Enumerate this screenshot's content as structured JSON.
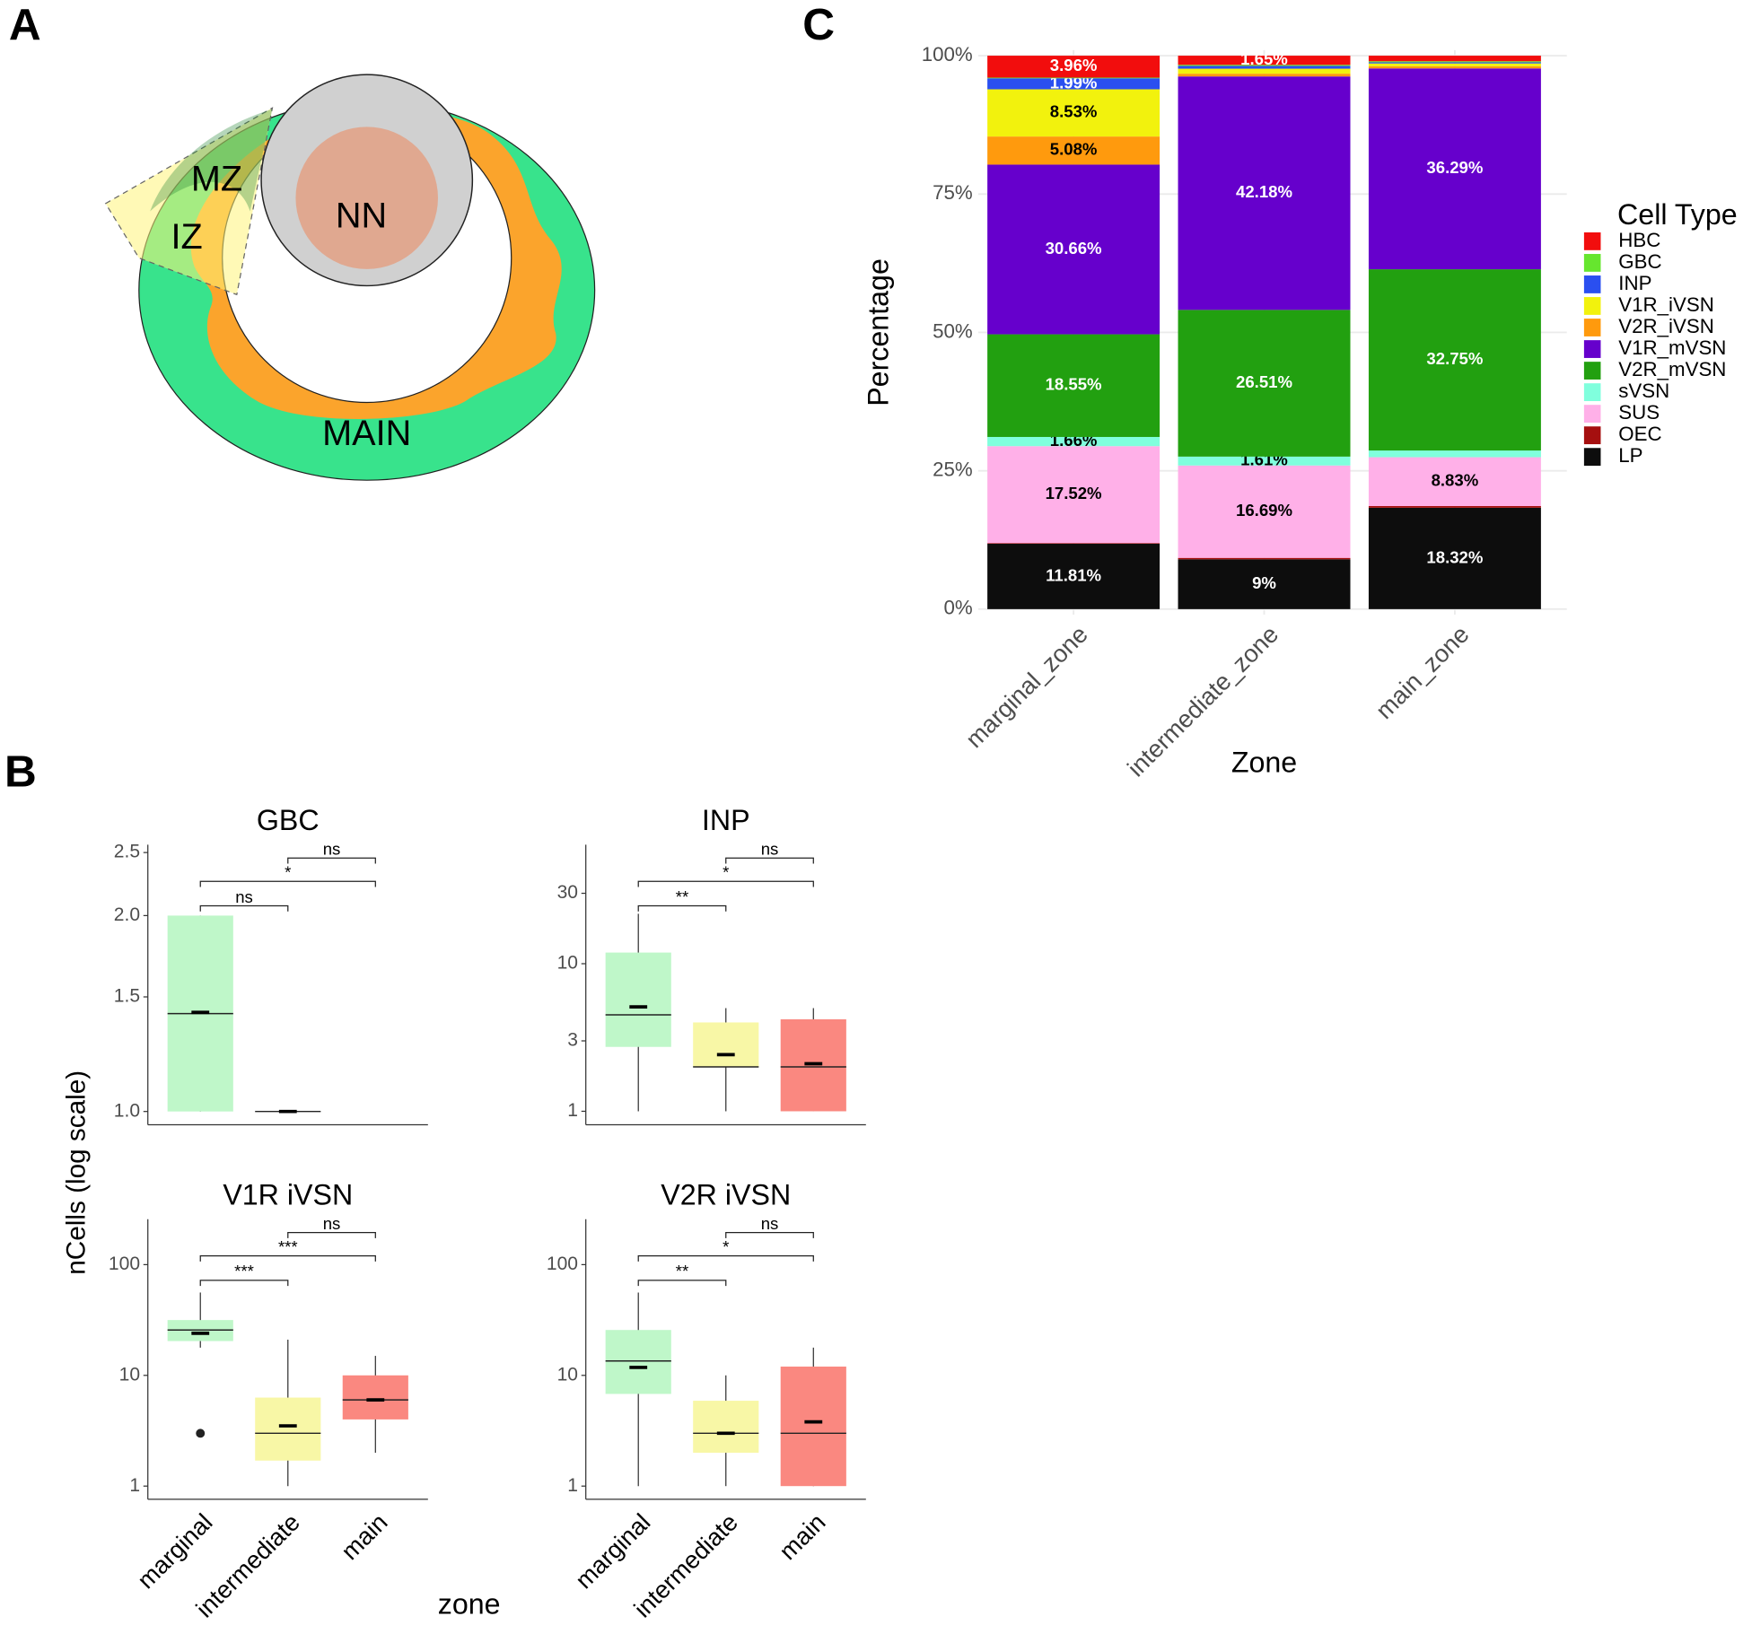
{
  "figure": {
    "panel_a": {
      "letter": "A",
      "labels": [
        "MZ",
        "IZ",
        "NN",
        "MAIN"
      ]
    },
    "panel_b": {
      "letter": "B",
      "y_label": "nCells (log scale)",
      "x_label": "zone"
    },
    "panel_c": {
      "letter": "C"
    }
  },
  "chart_data": [
    {
      "type": "box",
      "title": "GBC",
      "categories": [
        null,
        null,
        null
      ],
      "colors": [
        "#bff7c9",
        "#f8f7a6",
        "#fa8880"
      ],
      "log_scale": true,
      "ylim": [
        0.954,
        2.57
      ],
      "yticks": [
        {
          "value": 1,
          "label": "1.0"
        },
        1.5,
        {
          "value": 2,
          "label": "2.0"
        },
        2.5
      ],
      "boxes": [
        {
          "low": 1,
          "q1": 1,
          "median": 1.414,
          "q3": 2,
          "high": 2,
          "mean": 1.42
        },
        {
          "low": 1,
          "q1": 1,
          "median": 1,
          "q3": 1,
          "high": 1,
          "mean": 1
        },
        null
      ],
      "significance": [
        "ns",
        "*",
        "ns"
      ]
    },
    {
      "type": "box",
      "title": "INP",
      "categories": [
        null,
        null,
        null
      ],
      "colors": [
        "#bff7c9",
        "#f8f7a6",
        "#fa8880"
      ],
      "log_scale": true,
      "ylim": [
        0.81,
        64
      ],
      "yticks": [
        1,
        3,
        10,
        30
      ],
      "boxes": [
        {
          "low": 1,
          "q1": 2.73,
          "median": 4.5,
          "q3": 11.9,
          "high": 21.8,
          "mean": 5.1
        },
        {
          "low": 1,
          "q1": 2,
          "median": 2,
          "q3": 4,
          "high": 5,
          "mean": 2.42
        },
        {
          "low": 1,
          "q1": 1,
          "median": 2,
          "q3": 4.2,
          "high": 5,
          "mean": 2.1
        }
      ],
      "significance": [
        "**",
        "*",
        "ns"
      ]
    },
    {
      "type": "box",
      "title": "V1R iVSN",
      "categories": [
        "marginal",
        "intermediate",
        "main"
      ],
      "colors": [
        "#bff7c9",
        "#f8f7a6",
        "#fa8880"
      ],
      "log_scale": true,
      "ylim": [
        0.76,
        257
      ],
      "yticks": [
        1,
        10,
        100
      ],
      "boxes": [
        {
          "low": 17.8,
          "q1": 20.4,
          "median": 25.7,
          "q3": 31.6,
          "high": 56,
          "mean": 24,
          "outliers": [
            3
          ]
        },
        {
          "low": 1,
          "q1": 1.7,
          "median": 3,
          "q3": 6.3,
          "high": 21,
          "mean": 3.5
        },
        {
          "low": 2,
          "q1": 4,
          "median": 6,
          "q3": 10,
          "high": 15,
          "mean": 6
        }
      ],
      "significance": [
        "***",
        "***",
        "ns"
      ]
    },
    {
      "type": "box",
      "title": "V2R iVSN",
      "categories": [
        "marginal",
        "intermediate",
        "main"
      ],
      "colors": [
        "#bff7c9",
        "#f8f7a6",
        "#fa8880"
      ],
      "log_scale": true,
      "ylim": [
        0.76,
        257
      ],
      "yticks": [
        1,
        10,
        100
      ],
      "boxes": [
        {
          "low": 1,
          "q1": 6.8,
          "median": 13.5,
          "q3": 25.7,
          "high": 56,
          "mean": 11.8
        },
        {
          "low": 1,
          "q1": 2,
          "median": 3,
          "q3": 5.9,
          "high": 10,
          "mean": 3
        },
        {
          "low": 1,
          "q1": 1,
          "median": 3,
          "q3": 12,
          "high": 17.8,
          "mean": 3.8
        }
      ],
      "significance": [
        "**",
        "*",
        "ns"
      ]
    },
    {
      "type": "stacked_bar",
      "categories": [
        "marginal_zone",
        "intermediate_zone",
        "main_zone"
      ],
      "y_label": "Percentage",
      "x_label": "Zone",
      "legend_title": "Cell Type",
      "legend": "right",
      "grid": true,
      "ylim": [
        0,
        100
      ],
      "yticks": [
        {
          "value": 0,
          "label": "0%"
        },
        {
          "value": 25,
          "label": "25%"
        },
        {
          "value": 50,
          "label": "50%"
        },
        {
          "value": 75,
          "label": "75%"
        },
        {
          "value": 100,
          "label": "100%"
        }
      ],
      "series": [
        {
          "name": "HBC",
          "color": "#f20d0d",
          "values": [
            3.96,
            1.65,
            1.0
          ],
          "value_labels": [
            "3.96%",
            "1.65%",
            null
          ]
        },
        {
          "name": "GBC",
          "color": "#66e62e",
          "values": [
            0.12,
            0.2,
            0.2
          ]
        },
        {
          "name": "INP",
          "color": "#2a4ff0",
          "values": [
            1.99,
            0.5,
            0.2
          ],
          "value_labels": [
            "1.99%",
            null,
            null
          ]
        },
        {
          "name": "V1R_iVSN",
          "color": "#f2f20d",
          "values": [
            8.53,
            0.9,
            0.5
          ],
          "value_labels": [
            "8.53%",
            null,
            null
          ]
        },
        {
          "name": "V2R_iVSN",
          "color": "#ff9a0d",
          "values": [
            5.08,
            0.5,
            0.4
          ],
          "value_labels": [
            "5.08%",
            null,
            null
          ]
        },
        {
          "name": "V1R_mVSN",
          "color": "#6600cc",
          "values": [
            30.66,
            42.18,
            36.29
          ],
          "value_labels": [
            "30.66%",
            "42.18%",
            "36.29%"
          ]
        },
        {
          "name": "V2R_mVSN",
          "color": "#22a010",
          "values": [
            18.55,
            26.51,
            32.75
          ],
          "value_labels": [
            "18.55%",
            "26.51%",
            "32.75%"
          ]
        },
        {
          "name": "sVSN",
          "color": "#80ffdd",
          "values": [
            1.66,
            1.61,
            1.21
          ],
          "value_labels": [
            "1.66%",
            "1.61%",
            null
          ]
        },
        {
          "name": "SUS",
          "color": "#ffb0e8",
          "values": [
            17.52,
            16.69,
            8.83
          ],
          "value_labels": [
            "17.52%",
            "16.69%",
            "8.83%"
          ]
        },
        {
          "name": "OEC",
          "color": "#a50f0f",
          "values": [
            0.12,
            0.26,
            0.3
          ]
        },
        {
          "name": "LP",
          "color": "#0d0d0d",
          "values": [
            11.81,
            9,
            18.32
          ],
          "value_labels": [
            "11.81%",
            "9%",
            "18.32%"
          ]
        }
      ]
    }
  ]
}
